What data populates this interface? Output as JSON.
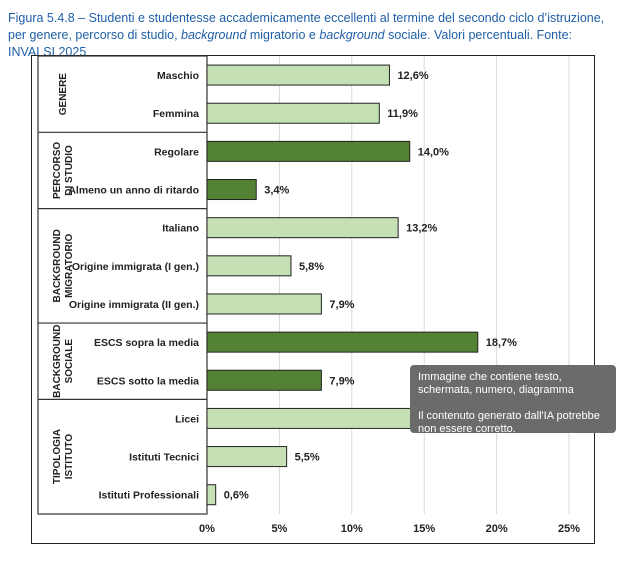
{
  "title": {
    "part1": "Figura 5.4.8 – Studenti e studentesse accademicamente eccellenti al termine del secondo ciclo d’istruzione, per genere, percorso di studio, ",
    "italic1": "background",
    "part2": " migratorio e ",
    "italic2": "background",
    "part3": " sociale. Valori percentuali. Fonte: INVALSI 2025"
  },
  "chart_data": {
    "type": "bar",
    "orientation": "horizontal",
    "xlim": [
      0,
      25
    ],
    "xticks": [
      "0%",
      "5%",
      "10%",
      "15%",
      "20%",
      "25%"
    ],
    "grid": true,
    "colors": {
      "light": "#c5e0b4",
      "dark": "#548235"
    },
    "groups": [
      {
        "name": [
          "GENERE"
        ],
        "color": "light",
        "categories": [
          "Maschio",
          "Femmina"
        ],
        "values": [
          12.6,
          11.9
        ],
        "labels": [
          "12,6%",
          "11,9%"
        ]
      },
      {
        "name": [
          "PERCORSO",
          "DI STUDIO"
        ],
        "color": "dark",
        "categories": [
          "Regolare",
          "Almeno un anno di ritardo"
        ],
        "values": [
          14.0,
          3.4
        ],
        "labels": [
          "14,0%",
          "3,4%"
        ]
      },
      {
        "name": [
          "BACKGROUND",
          "MIGRATORIO"
        ],
        "color": "light",
        "categories": [
          "Italiano",
          "Origine immigrata (I gen.)",
          "Origine immigrata (II gen.)"
        ],
        "values": [
          13.2,
          5.8,
          7.9
        ],
        "labels": [
          "13,2%",
          "5,8%",
          "7,9%"
        ]
      },
      {
        "name": [
          "BACKGROUND",
          "SOCIALE"
        ],
        "color": "dark",
        "categories": [
          "ESCS sopra la media",
          "ESCS sotto la media"
        ],
        "values": [
          18.7,
          7.9
        ],
        "labels": [
          "18,7%",
          "7,9%"
        ]
      },
      {
        "name": [
          "TIPOLOGIA",
          "ISTITUTO"
        ],
        "color": "light",
        "categories": [
          "Licei",
          "Istituti Tecnici",
          "Istituti Professionali"
        ],
        "values": [
          null,
          5.5,
          0.6
        ],
        "labels": [
          "",
          "5,5%",
          "0,6%"
        ]
      }
    ]
  },
  "tooltip": {
    "line1": "Immagine che contiene testo, schermata, numero, diagramma",
    "line2": "Il contenuto generato dall'IA potrebbe non essere corretto."
  }
}
